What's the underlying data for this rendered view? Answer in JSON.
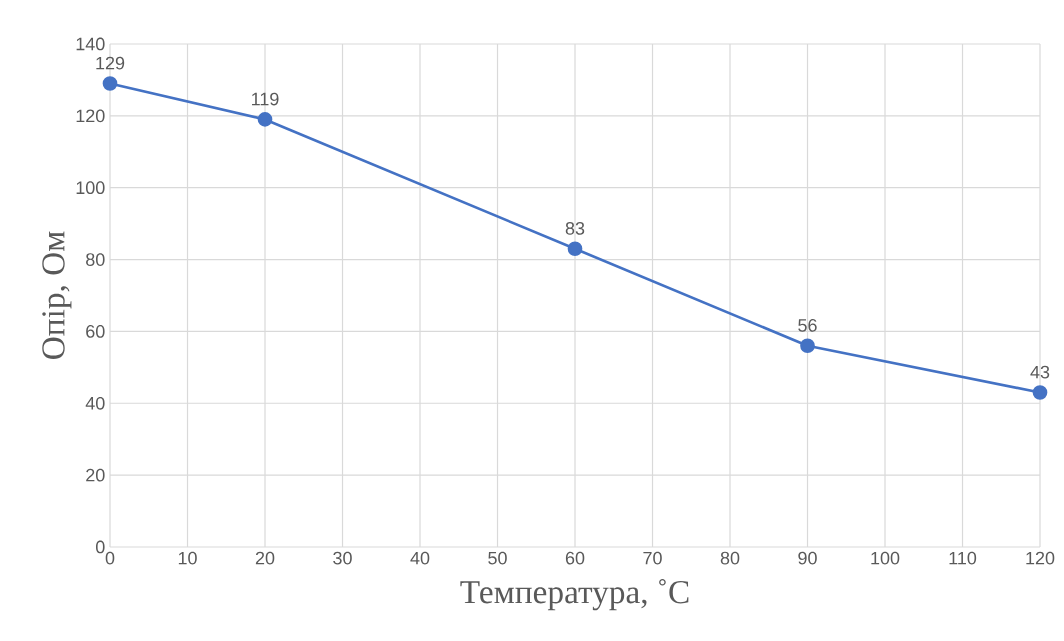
{
  "chart_data": {
    "type": "line",
    "xlabel": "Температура, ˚C",
    "ylabel": "Опір, Ом",
    "x": [
      0,
      20,
      60,
      90,
      120
    ],
    "series": [
      {
        "color": "#4472c4",
        "values": [
          129,
          119,
          83,
          56,
          43
        ]
      }
    ],
    "xlim": [
      0,
      120
    ],
    "xticks": [
      0,
      10,
      20,
      30,
      40,
      50,
      60,
      70,
      80,
      90,
      100,
      110,
      120
    ],
    "ylim": [
      0,
      140
    ],
    "yticks": [
      0,
      20,
      40,
      60,
      80,
      100,
      120,
      140
    ],
    "grid": true,
    "data_labels": true,
    "marker": "circle",
    "line_style": "solid"
  }
}
